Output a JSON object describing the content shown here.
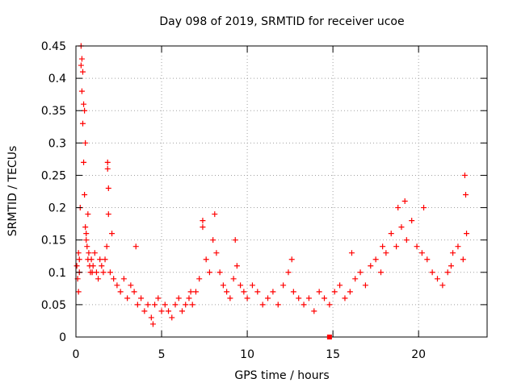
{
  "chart_data": {
    "type": "scatter",
    "title": "Day 098 of 2019, SRMTID for receiver ucoe",
    "xlabel": "GPS time / hours",
    "ylabel": "SRMTID / TECUs",
    "xlim": [
      0,
      24
    ],
    "ylim": [
      0,
      0.45
    ],
    "xticks": [
      0,
      5,
      10,
      15,
      20
    ],
    "xtick_labels": [
      "0",
      "5",
      "10",
      "15",
      "20"
    ],
    "yticks": [
      0,
      0.05,
      0.1,
      0.15,
      0.2,
      0.25,
      0.3,
      0.35,
      0.4,
      0.45
    ],
    "ytick_labels": [
      "0",
      "0.05",
      "0.1",
      "0.15",
      "0.2",
      "0.25",
      "0.3",
      "0.35",
      "0.4",
      "0.45"
    ],
    "grid": true,
    "marker": "plus",
    "series": [
      {
        "name": "SRMTID",
        "color": "#ff0000",
        "x": [
          0.05,
          0.1,
          0.15,
          0.2,
          0.25,
          0.3,
          0.35,
          0.4,
          0.45,
          0.5,
          0.55,
          0.6,
          0.65,
          0.7,
          0.75,
          0.8,
          0.85,
          0.9,
          0.95,
          1.0,
          1.1,
          1.2,
          1.3,
          1.4,
          1.5,
          1.6,
          1.7,
          1.8,
          1.85,
          1.9,
          2.0,
          2.2,
          2.4,
          2.6,
          2.8,
          3.0,
          3.2,
          3.4,
          3.6,
          3.8,
          4.0,
          4.2,
          4.4,
          4.6,
          4.8,
          5.0,
          5.2,
          5.4,
          5.6,
          5.8,
          6.0,
          6.2,
          6.4,
          6.6,
          6.8,
          7.0,
          7.2,
          7.4,
          7.6,
          7.8,
          8.0,
          8.2,
          8.4,
          8.6,
          8.8,
          9.0,
          9.2,
          9.4,
          9.6,
          9.8,
          10.0,
          10.3,
          10.6,
          10.9,
          11.2,
          11.5,
          11.8,
          12.1,
          12.4,
          12.7,
          13.0,
          13.3,
          13.6,
          13.9,
          14.2,
          14.5,
          14.8,
          15.1,
          15.4,
          15.7,
          16.0,
          16.3,
          16.6,
          16.9,
          17.2,
          17.5,
          17.8,
          18.1,
          18.4,
          18.7,
          19.0,
          19.3,
          19.6,
          19.9,
          20.2,
          20.5,
          20.8,
          21.1,
          21.4,
          21.7,
          22.0,
          22.3,
          22.6,
          22.8,
          0.3,
          0.35,
          0.4,
          0.45,
          0.5,
          0.55,
          1.85,
          1.9,
          0.15,
          0.2,
          0.6,
          0.7,
          2.1,
          7.4,
          8.1,
          18.8,
          19.2,
          22.7,
          22.75,
          3.5,
          4.5,
          6.7,
          9.3,
          12.6,
          16.1,
          17.9,
          20.3,
          21.9
        ],
        "y": [
          0.11,
          0.09,
          0.07,
          0.12,
          0.2,
          0.42,
          0.38,
          0.33,
          0.27,
          0.22,
          0.17,
          0.15,
          0.14,
          0.12,
          0.13,
          0.11,
          0.1,
          0.12,
          0.1,
          0.11,
          0.13,
          0.1,
          0.09,
          0.12,
          0.11,
          0.1,
          0.12,
          0.14,
          0.26,
          0.19,
          0.1,
          0.09,
          0.08,
          0.07,
          0.09,
          0.06,
          0.08,
          0.07,
          0.05,
          0.06,
          0.04,
          0.05,
          0.03,
          0.05,
          0.06,
          0.04,
          0.05,
          0.04,
          0.03,
          0.05,
          0.06,
          0.04,
          0.05,
          0.06,
          0.05,
          0.07,
          0.09,
          0.17,
          0.12,
          0.1,
          0.15,
          0.13,
          0.1,
          0.08,
          0.07,
          0.06,
          0.09,
          0.11,
          0.08,
          0.07,
          0.06,
          0.08,
          0.07,
          0.05,
          0.06,
          0.07,
          0.05,
          0.08,
          0.1,
          0.07,
          0.06,
          0.05,
          0.06,
          0.04,
          0.07,
          0.06,
          0.05,
          0.07,
          0.08,
          0.06,
          0.07,
          0.09,
          0.1,
          0.08,
          0.11,
          0.12,
          0.1,
          0.13,
          0.16,
          0.14,
          0.17,
          0.15,
          0.18,
          0.14,
          0.13,
          0.12,
          0.1,
          0.09,
          0.08,
          0.1,
          0.13,
          0.14,
          0.12,
          0.16,
          0.45,
          0.43,
          0.41,
          0.36,
          0.35,
          0.3,
          0.27,
          0.23,
          0.13,
          0.1,
          0.16,
          0.19,
          0.16,
          0.18,
          0.19,
          0.2,
          0.21,
          0.25,
          0.22,
          0.14,
          0.02,
          0.07,
          0.15,
          0.12,
          0.13,
          0.14,
          0.2,
          0.11
        ]
      }
    ],
    "annotations": [
      {
        "type": "marker",
        "shape": "square",
        "x": 14.8,
        "y": 0,
        "color": "#ff0000"
      }
    ]
  }
}
